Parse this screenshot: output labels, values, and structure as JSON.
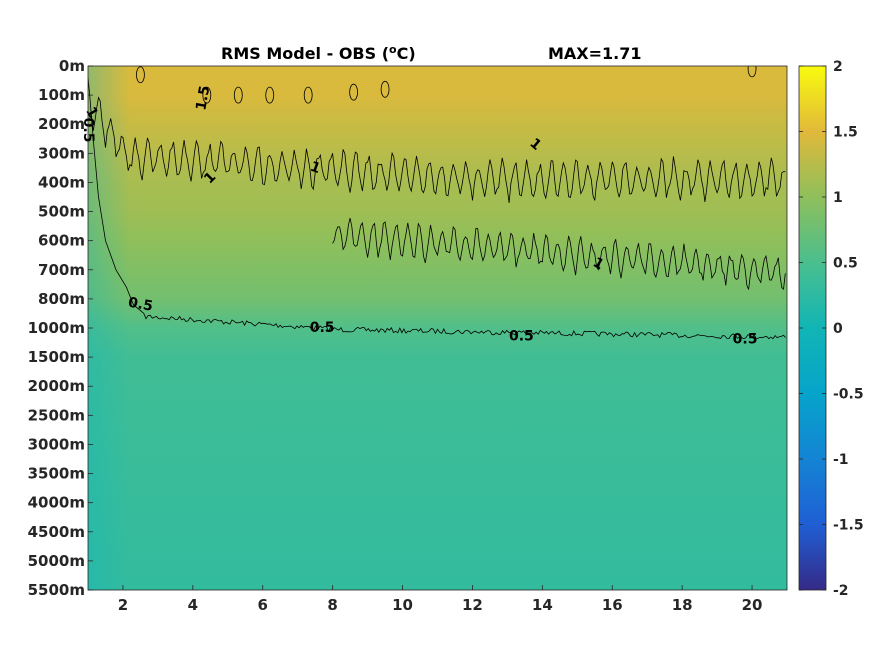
{
  "chart_data": {
    "type": "heatmap",
    "title": "RMS Model - OBS (",
    "title_unit": "o",
    "title_unit_suffix": "C)",
    "max_label": "MAX=1.71",
    "xlabel": "",
    "ylabel": "",
    "xlim": [
      1,
      21
    ],
    "x_ticks": [
      2,
      4,
      6,
      8,
      10,
      12,
      14,
      16,
      18,
      20
    ],
    "y_levels": [
      "0m",
      "100m",
      "200m",
      "300m",
      "400m",
      "500m",
      "600m",
      "700m",
      "800m",
      "1000m",
      "1500m",
      "2000m",
      "2500m",
      "3000m",
      "3500m",
      "4000m",
      "4500m",
      "5000m",
      "5500m"
    ],
    "colorbar": {
      "range": [
        -2,
        2
      ],
      "ticks": [
        "2",
        "1.5",
        "1",
        "0.5",
        "0",
        "-0.5",
        "-1",
        "-1.5",
        "-2"
      ],
      "colormap": "parula"
    },
    "contour_levels": [
      0.5,
      1,
      1.5
    ],
    "contour_labels": [
      {
        "text": "0.5",
        "x": 1.0,
        "depth_index": 2.2,
        "angle": 90
      },
      {
        "text": "1",
        "x": 1.1,
        "depth_index": 1.6,
        "angle": 60
      },
      {
        "text": "1.5",
        "x": 4.3,
        "depth_index": 1.1,
        "angle": -80
      },
      {
        "text": "1",
        "x": 4.5,
        "depth_index": 3.85,
        "angle": -45
      },
      {
        "text": "1",
        "x": 7.5,
        "depth_index": 3.5,
        "angle": 20
      },
      {
        "text": "1",
        "x": 13.8,
        "depth_index": 2.7,
        "angle": 40
      },
      {
        "text": "1",
        "x": 15.6,
        "depth_index": 6.8,
        "angle": 30
      },
      {
        "text": "0.5",
        "x": 2.5,
        "depth_index": 8.2,
        "angle": 10
      },
      {
        "text": "0.5",
        "x": 7.7,
        "depth_index": 9.0,
        "angle": 0
      },
      {
        "text": "0.5",
        "x": 13.4,
        "depth_index": 9.3,
        "angle": 0
      },
      {
        "text": "0.5",
        "x": 19.8,
        "depth_index": 9.4,
        "angle": 0
      }
    ],
    "field_profile": [
      {
        "depth_index": 0,
        "value": 1.45
      },
      {
        "depth_index": 1,
        "value": 1.45
      },
      {
        "depth_index": 2,
        "value": 1.35
      },
      {
        "depth_index": 3,
        "value": 1.25
      },
      {
        "depth_index": 4,
        "value": 1.15
      },
      {
        "depth_index": 5,
        "value": 1.1
      },
      {
        "depth_index": 6,
        "value": 1.0
      },
      {
        "depth_index": 7,
        "value": 0.9
      },
      {
        "depth_index": 8,
        "value": 0.8
      },
      {
        "depth_index": 9,
        "value": 0.55
      },
      {
        "depth_index": 10,
        "value": 0.42
      },
      {
        "depth_index": 12,
        "value": 0.38
      },
      {
        "depth_index": 15,
        "value": 0.33
      },
      {
        "depth_index": 18,
        "value": 0.3
      }
    ]
  }
}
